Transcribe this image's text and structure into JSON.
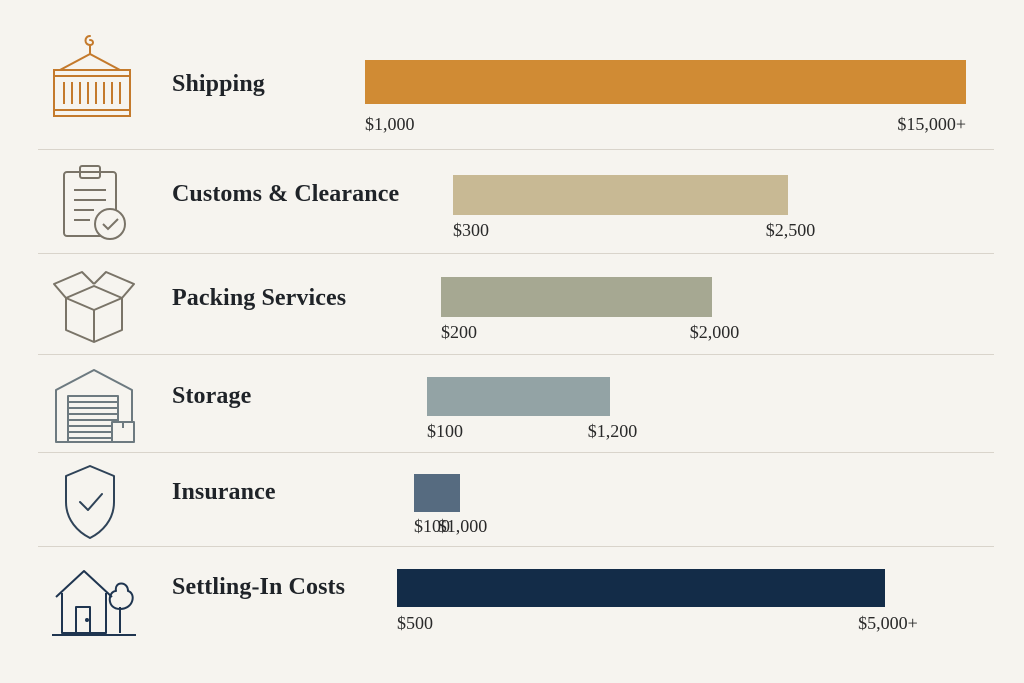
{
  "colors": {
    "background": "#f6f4ef",
    "divider": "#d9d4cb",
    "text": "#1f2328"
  },
  "chart_data": {
    "type": "bar",
    "orientation": "horizontal",
    "categories": [
      "Shipping",
      "Customs & Clearance",
      "Packing Services",
      "Storage",
      "Insurance",
      "Settling-In Costs"
    ],
    "series": [
      {
        "ranges": [
          {
            "low": 1000,
            "high": 15000,
            "low_label": "$1,000",
            "high_label": "$15,000+"
          },
          {
            "low": 300,
            "high": 2500,
            "low_label": "$300",
            "high_label": "$2,500"
          },
          {
            "low": 200,
            "high": 2000,
            "low_label": "$200",
            "high_label": "$2,000"
          },
          {
            "low": 100,
            "high": 1200,
            "low_label": "$100",
            "high_label": "$1,200"
          },
          {
            "low": 100,
            "high": 1000,
            "low_label": "$100",
            "high_label": "$1,000"
          },
          {
            "low": 500,
            "high": 5000,
            "low_label": "$500",
            "high_label": "$5,000+"
          }
        ]
      }
    ],
    "bar_colors": [
      "#d08b34",
      "#c8b994",
      "#a6a892",
      "#93a3a5",
      "#566b80",
      "#132c48"
    ],
    "icons": [
      "shipping-container-icon",
      "clipboard-check-icon",
      "open-box-icon",
      "storage-garage-icon",
      "shield-check-icon",
      "house-tree-icon"
    ],
    "icon_colors": [
      "#c47a2c",
      "#7a7468",
      "#7a7468",
      "#6d7a80",
      "#2f4358",
      "#1f3550"
    ],
    "title": "",
    "xlabel": "",
    "ylabel": ""
  }
}
